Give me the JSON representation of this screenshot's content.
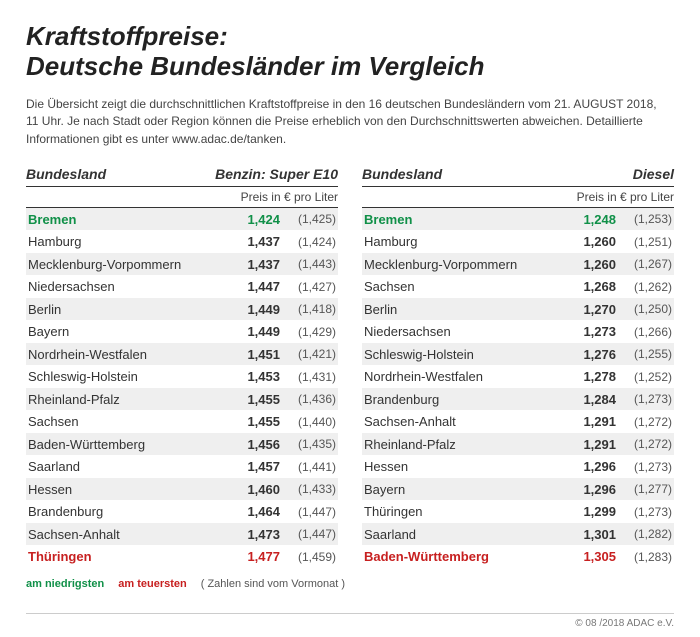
{
  "title_line1": "Kraftstoffpreise:",
  "title_line2": "Deutsche Bundesländer im Vergleich",
  "intro": "Die Übersicht zeigt die durchschnittlichen Kraftstoffpreise in den 16 deutschen Bundesländern vom 21. AUGUST 2018, 11 Uhr. Je nach Stadt oder Region können die Preise erheblich von den Durchschnittswerten abweichen. Detaillierte Informationen gibt es unter www.adac.de/tanken.",
  "header_state": "Bundesland",
  "header_benzin": "Benzin:  Super E10",
  "header_diesel": "Diesel",
  "subheader_price": "Preis in € pro Liter",
  "legend_low": "am niedrigsten",
  "legend_high": "am teuersten",
  "legend_note": "( Zahlen sind vom Vormonat )",
  "footer": "© 08 /2018 ADAC e.V.",
  "colors": {
    "low": "#109048",
    "high": "#c72020",
    "shade": "#efefef",
    "text": "#333333"
  },
  "benzin": [
    {
      "state": "Bremen",
      "price": "1,424",
      "prev": "(1,425)",
      "hl": "low"
    },
    {
      "state": "Hamburg",
      "price": "1,437",
      "prev": "(1,424)"
    },
    {
      "state": "Mecklenburg-Vorpommern",
      "price": "1,437",
      "prev": "(1,443)"
    },
    {
      "state": "Niedersachsen",
      "price": "1,447",
      "prev": "(1,427)"
    },
    {
      "state": "Berlin",
      "price": "1,449",
      "prev": "(1,418)"
    },
    {
      "state": "Bayern",
      "price": "1,449",
      "prev": "(1,429)"
    },
    {
      "state": "Nordrhein-Westfalen",
      "price": "1,451",
      "prev": "(1,421)"
    },
    {
      "state": "Schleswig-Holstein",
      "price": "1,453",
      "prev": "(1,431)"
    },
    {
      "state": "Rheinland-Pfalz",
      "price": "1,455",
      "prev": "(1,436)"
    },
    {
      "state": "Sachsen",
      "price": "1,455",
      "prev": "(1,440)"
    },
    {
      "state": "Baden-Württemberg",
      "price": "1,456",
      "prev": "(1,435)"
    },
    {
      "state": "Saarland",
      "price": "1,457",
      "prev": "(1,441)"
    },
    {
      "state": "Hessen",
      "price": "1,460",
      "prev": "(1,433)"
    },
    {
      "state": "Brandenburg",
      "price": "1,464",
      "prev": "(1,447)"
    },
    {
      "state": "Sachsen-Anhalt",
      "price": "1,473",
      "prev": "(1,447)"
    },
    {
      "state": "Thüringen",
      "price": "1,477",
      "prev": "(1,459)",
      "hl": "high"
    }
  ],
  "diesel": [
    {
      "state": "Bremen",
      "price": "1,248",
      "prev": "(1,253)",
      "hl": "low"
    },
    {
      "state": "Hamburg",
      "price": "1,260",
      "prev": "(1,251)"
    },
    {
      "state": "Mecklenburg-Vorpommern",
      "price": "1,260",
      "prev": "(1,267)"
    },
    {
      "state": "Sachsen",
      "price": "1,268",
      "prev": "(1,262)"
    },
    {
      "state": "Berlin",
      "price": "1,270",
      "prev": "(1,250)"
    },
    {
      "state": "Niedersachsen",
      "price": "1,273",
      "prev": "(1,266)"
    },
    {
      "state": "Schleswig-Holstein",
      "price": "1,276",
      "prev": "(1,255)"
    },
    {
      "state": "Nordrhein-Westfalen",
      "price": "1,278",
      "prev": "(1,252)"
    },
    {
      "state": "Brandenburg",
      "price": "1,284",
      "prev": "(1,273)"
    },
    {
      "state": "Sachsen-Anhalt",
      "price": "1,291",
      "prev": "(1,272)"
    },
    {
      "state": "Rheinland-Pfalz",
      "price": "1,291",
      "prev": "(1,272)"
    },
    {
      "state": "Hessen",
      "price": "1,296",
      "prev": "(1,273)"
    },
    {
      "state": "Bayern",
      "price": "1,296",
      "prev": "(1,277)"
    },
    {
      "state": "Thüringen",
      "price": "1,299",
      "prev": "(1,273)"
    },
    {
      "state": "Saarland",
      "price": "1,301",
      "prev": "(1,282)"
    },
    {
      "state": "Baden-Württemberg",
      "price": "1,305",
      "prev": "(1,283)",
      "hl": "high"
    }
  ]
}
